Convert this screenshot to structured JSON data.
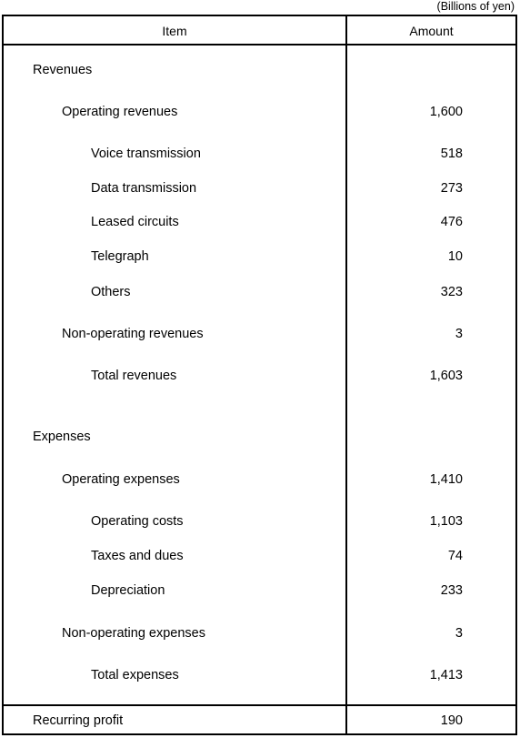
{
  "unit_note": "(Billions of yen)",
  "header": {
    "item": "Item",
    "amount": "Amount"
  },
  "rows": [
    {
      "label": "Revenues",
      "value": ""
    },
    {
      "label": "Operating revenues",
      "value": "1,600"
    },
    {
      "label": "Voice transmission",
      "value": "518"
    },
    {
      "label": "Data transmission",
      "value": "273"
    },
    {
      "label": "Leased circuits",
      "value": "476"
    },
    {
      "label": "Telegraph",
      "value": "10"
    },
    {
      "label": "Others",
      "value": "323"
    },
    {
      "label": "Non-operating revenues",
      "value": "3"
    },
    {
      "label": "Total revenues",
      "value": "1,603"
    },
    {
      "label": "Expenses",
      "value": ""
    },
    {
      "label": "Operating expenses",
      "value": "1,410"
    },
    {
      "label": "Operating costs",
      "value": "1,103"
    },
    {
      "label": "Taxes and dues",
      "value": "74"
    },
    {
      "label": "Depreciation",
      "value": "233"
    },
    {
      "label": "Non-operating expenses",
      "value": "3"
    },
    {
      "label": "Total expenses",
      "value": "1,413"
    }
  ],
  "footer": {
    "label": "Recurring profit",
    "value": "190"
  }
}
